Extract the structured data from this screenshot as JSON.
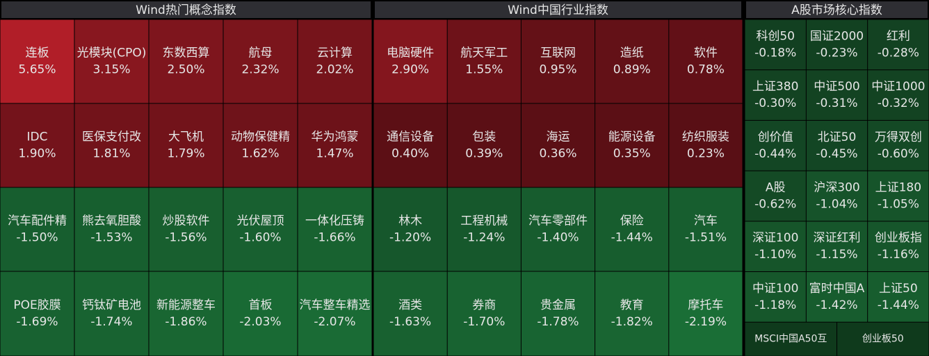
{
  "chart_data": [
    {
      "type": "heatmap",
      "title": "Wind热门概念指数",
      "names": [
        "连板",
        "光模块(CPO)",
        "东数西算",
        "航母",
        "云计算",
        "IDC",
        "医保支付改",
        "大飞机",
        "动物保健精",
        "华为鸿蒙",
        "汽车配件精",
        "熊去氧胆酸",
        "炒股软件",
        "光伏屋顶",
        "一体化压铸",
        "POE胶膜",
        "钙钛矿电池",
        "新能源整车",
        "首板",
        "汽车整车精选"
      ],
      "values": [
        5.65,
        3.15,
        2.5,
        2.32,
        2.02,
        1.9,
        1.81,
        1.79,
        1.62,
        1.47,
        -1.5,
        -1.53,
        -1.56,
        -1.6,
        -1.66,
        -1.69,
        -1.74,
        -1.86,
        -2.03,
        -2.07
      ],
      "value_labels": [
        "5.65%",
        "3.15%",
        "2.50%",
        "2.32%",
        "2.02%",
        "1.90%",
        "1.81%",
        "1.79%",
        "1.62%",
        "1.47%",
        "-1.50%",
        "-1.53%",
        "-1.56%",
        "-1.60%",
        "-1.66%",
        "-1.69%",
        "-1.74%",
        "-1.86%",
        "-2.03%",
        "-2.07%"
      ]
    },
    {
      "type": "heatmap",
      "title": "Wind中国行业指数",
      "names": [
        "电脑硬件",
        "航天军工",
        "互联网",
        "造纸",
        "软件",
        "通信设备",
        "包装",
        "海运",
        "能源设备",
        "纺织服装",
        "林木",
        "工程机械",
        "汽车零部件",
        "保险",
        "汽车",
        "酒类",
        "券商",
        "贵金属",
        "教育",
        "摩托车"
      ],
      "values": [
        2.9,
        1.55,
        0.95,
        0.89,
        0.78,
        0.4,
        0.39,
        0.36,
        0.35,
        0.23,
        -1.2,
        -1.24,
        -1.4,
        -1.44,
        -1.51,
        -1.63,
        -1.7,
        -1.78,
        -1.82,
        -2.19
      ],
      "value_labels": [
        "2.90%",
        "1.55%",
        "0.95%",
        "0.89%",
        "0.78%",
        "0.40%",
        "0.39%",
        "0.36%",
        "0.35%",
        "0.23%",
        "-1.20%",
        "-1.24%",
        "-1.40%",
        "-1.44%",
        "-1.51%",
        "-1.63%",
        "-1.70%",
        "-1.78%",
        "-1.82%",
        "-2.19%"
      ]
    },
    {
      "type": "heatmap",
      "title": "A股市场核心指数",
      "names": [
        "科创50",
        "国证2000",
        "红利",
        "上证380",
        "中证500",
        "中证1000",
        "创价值",
        "北证50",
        "万得双创",
        "A股",
        "沪深300",
        "上证180",
        "深证100",
        "深证红利",
        "创业板指",
        "中证100",
        "富时中国A",
        "上证50",
        "MSCI中国A50互",
        "创业板50"
      ],
      "values": [
        -0.18,
        -0.23,
        -0.28,
        -0.3,
        -0.31,
        -0.32,
        -0.44,
        -0.45,
        -0.6,
        -0.62,
        -1.04,
        -1.05,
        -1.1,
        -1.15,
        -1.16,
        -1.18,
        -1.42,
        -1.44,
        null,
        null
      ],
      "value_labels": [
        "-0.18%",
        "-0.23%",
        "-0.28%",
        "-0.30%",
        "-0.31%",
        "-0.32%",
        "-0.44%",
        "-0.45%",
        "-0.60%",
        "-0.62%",
        "-1.04%",
        "-1.05%",
        "-1.10%",
        "-1.15%",
        "-1.16%",
        "-1.18%",
        "-1.42%",
        "-1.44%",
        null,
        null
      ]
    }
  ]
}
